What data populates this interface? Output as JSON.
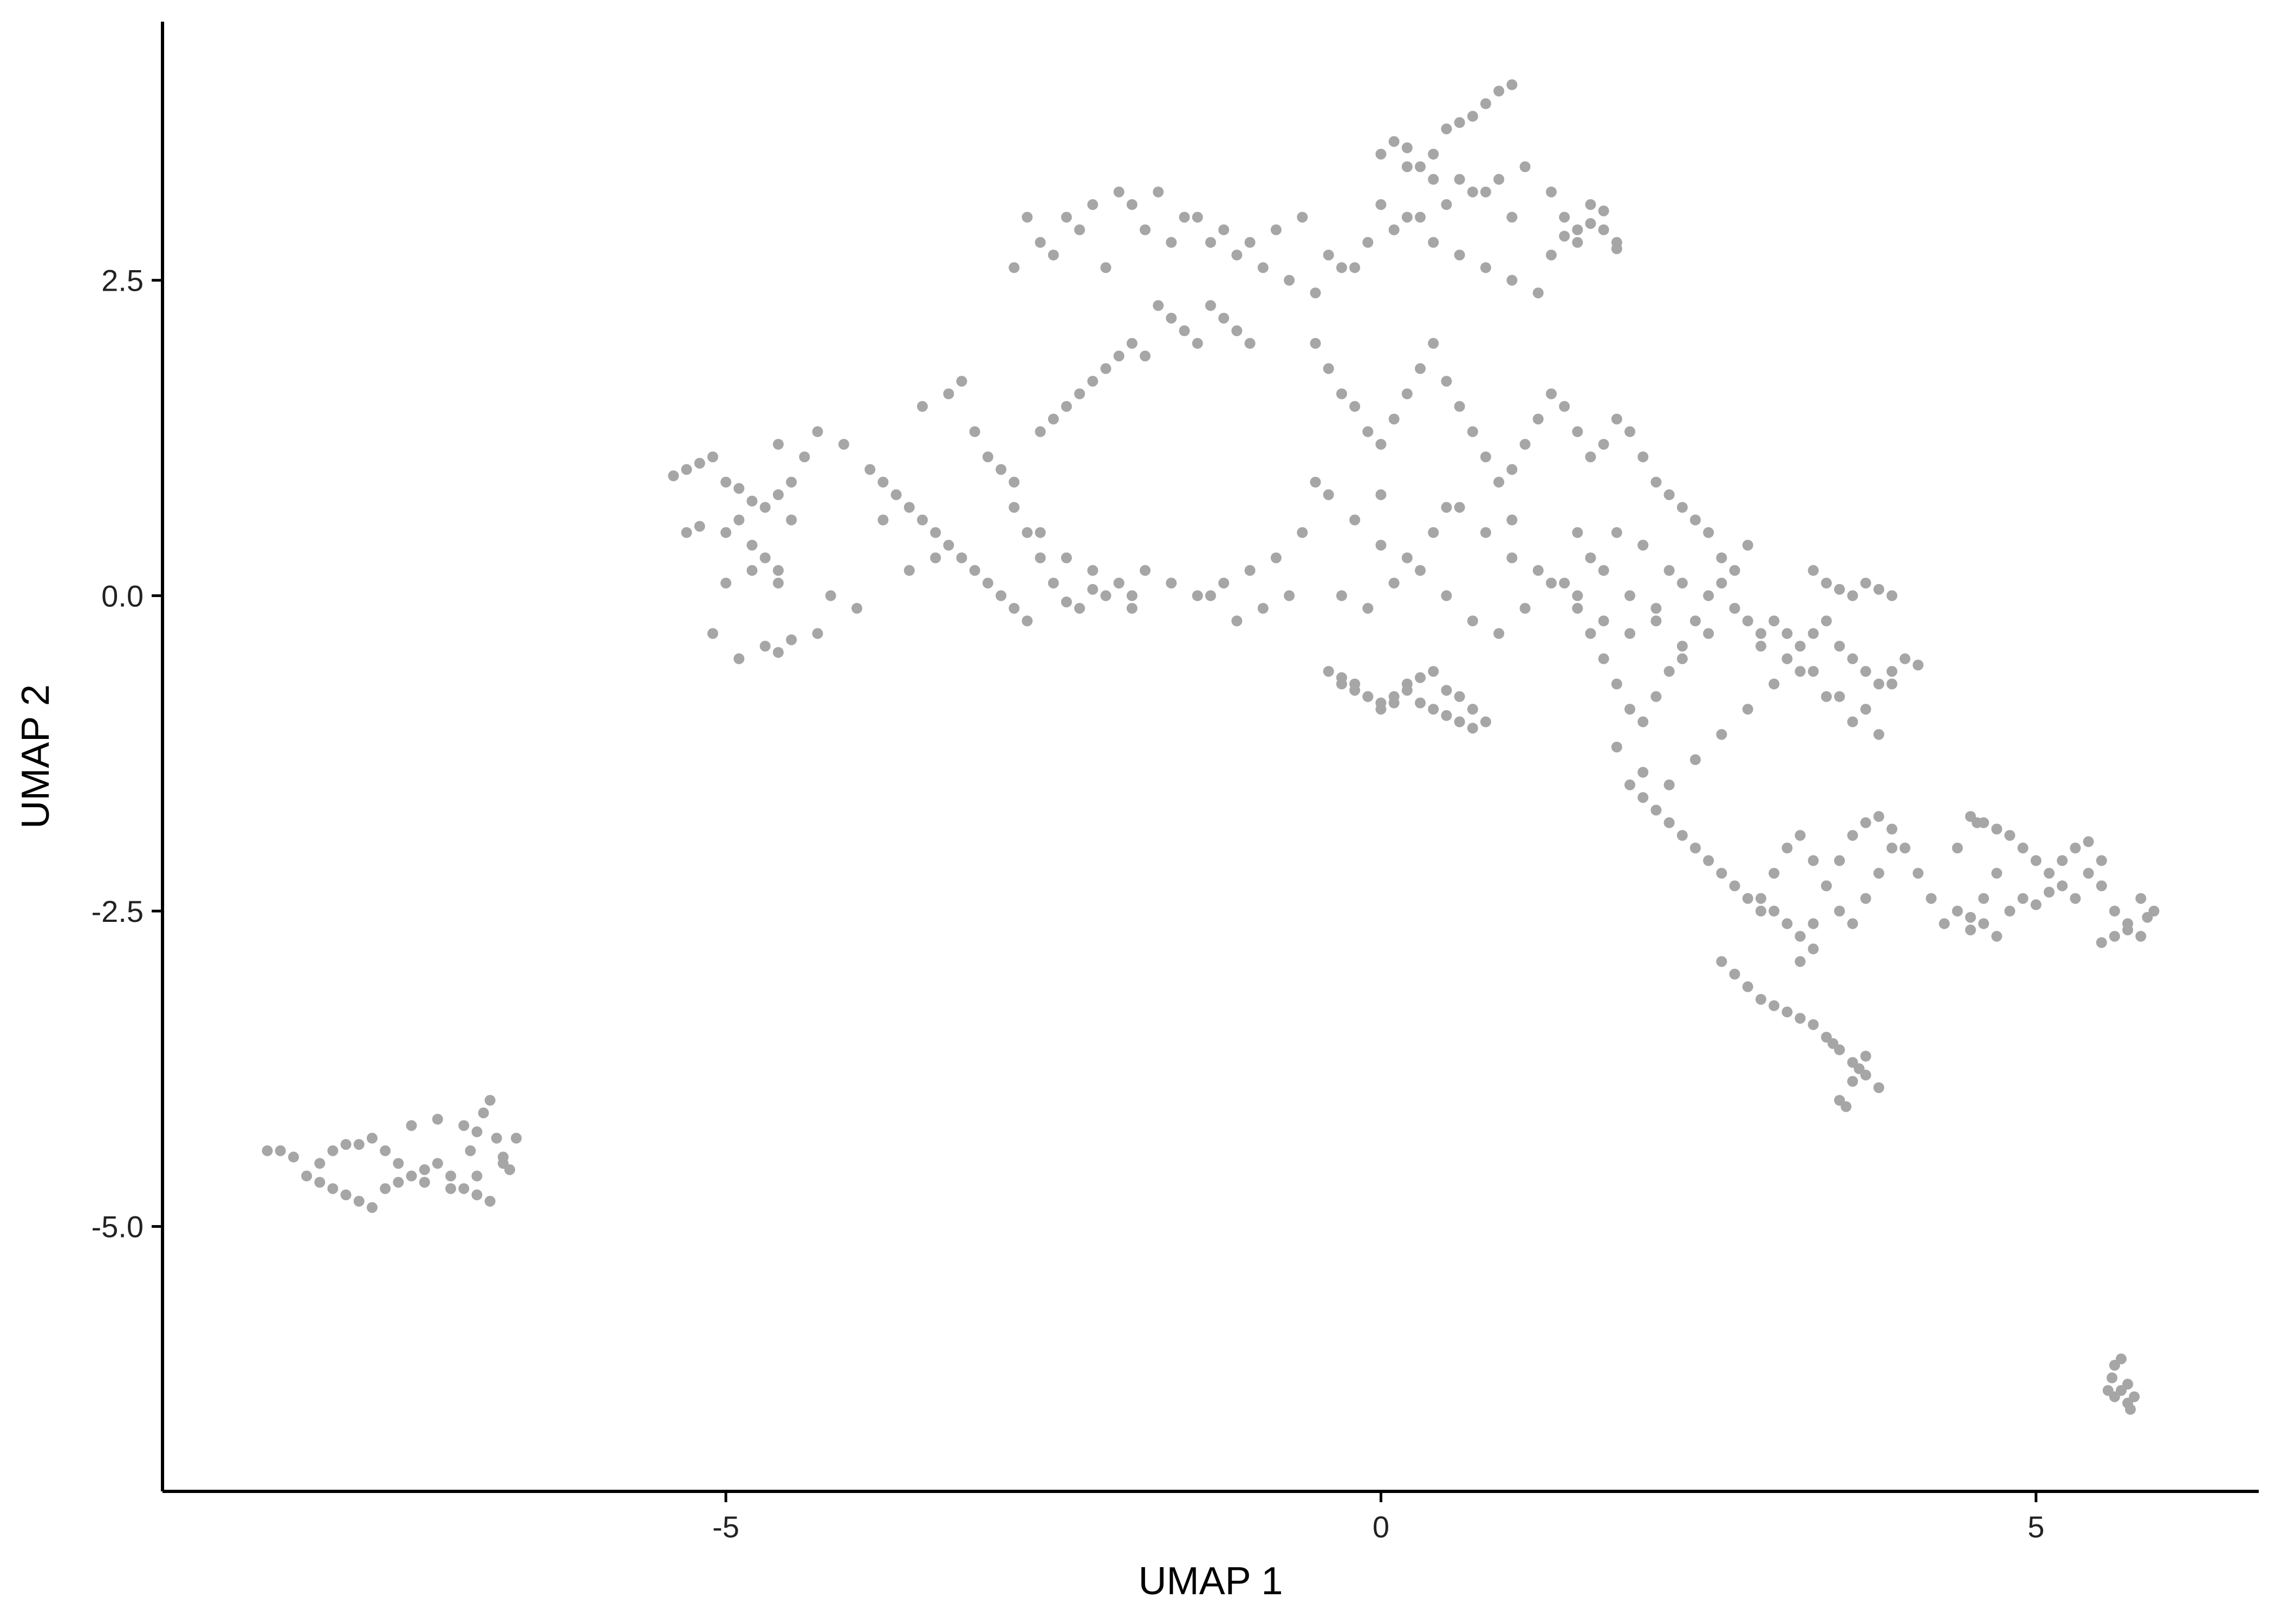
{
  "chart_data": {
    "type": "scatter",
    "xlabel": "UMAP 1",
    "ylabel": "UMAP 2",
    "xlim": [
      -9.3,
      6.7
    ],
    "ylim": [
      -7.1,
      4.55
    ],
    "xticks": [
      -5,
      0,
      5
    ],
    "xtick_labels": [
      "-5",
      "0",
      "5"
    ],
    "yticks": [
      -5.0,
      -2.5,
      0.0,
      2.5
    ],
    "ytick_labels": [
      "-5.0",
      "-2.5",
      "0.0",
      "2.5"
    ],
    "grid": false,
    "legend": "none",
    "point_color": "#a6a6a6",
    "axis_color": "#000000",
    "series": [
      {
        "x": [
          -5.4,
          -5.3,
          -5.2,
          -5.1,
          -5.0,
          -4.9,
          -4.8,
          -4.9,
          -5.0,
          -4.7,
          -4.6,
          -4.5,
          -4.6,
          -4.8,
          -4.7,
          -4.6,
          -4.5,
          -5.2,
          -5.3,
          -5.0,
          -4.4,
          -4.3,
          -4.1,
          -3.9,
          -3.8,
          -3.7,
          -3.6,
          -3.5,
          -3.4,
          -3.3,
          -3.2,
          -3.1,
          -3.0,
          -2.9,
          -2.8,
          -2.7,
          -3.5,
          -3.3,
          -3.2,
          -3.1,
          -3.0,
          -2.9,
          -2.8,
          -3.8,
          -3.6,
          -4.0,
          -4.2,
          -3.4,
          -2.6,
          -2.5,
          -2.4,
          -2.3,
          -2.2,
          -2.1,
          -2.0,
          -2.6,
          -2.4,
          -2.2,
          -2.0,
          -1.9,
          -2.8,
          -2.7,
          -2.6,
          -2.5,
          -2.4,
          -2.3,
          -2.2,
          -1.9,
          -2.1,
          -4.6,
          -4.9,
          -5.1,
          -4.7,
          -4.5,
          -4.3,
          -4.8,
          -4.6
        ],
        "y": [
          0.95,
          1.0,
          1.05,
          1.1,
          0.9,
          0.85,
          0.75,
          0.6,
          0.5,
          0.7,
          0.8,
          0.9,
          1.2,
          0.4,
          0.3,
          0.2,
          0.6,
          0.55,
          0.5,
          0.1,
          1.1,
          1.3,
          1.2,
          1.0,
          0.9,
          0.8,
          0.7,
          0.6,
          0.5,
          0.4,
          0.3,
          0.2,
          0.1,
          0.0,
          -0.1,
          -0.2,
          1.5,
          1.6,
          1.7,
          1.3,
          1.1,
          1.0,
          0.9,
          0.6,
          0.2,
          -0.1,
          0.0,
          0.3,
          1.3,
          1.4,
          1.5,
          1.6,
          1.7,
          1.8,
          1.9,
          0.5,
          0.3,
          0.2,
          0.1,
          0.0,
          0.7,
          0.5,
          0.3,
          0.1,
          -0.05,
          -0.1,
          0.05,
          -0.1,
          0.0,
          -0.45,
          -0.5,
          -0.3,
          -0.4,
          -0.35,
          -0.3,
          0.2,
          0.1
        ]
      },
      {
        "x": [
          -2.8,
          -2.6,
          -2.4,
          -2.2,
          -2.0,
          -1.8,
          -1.6,
          -1.4,
          -1.2,
          -1.0,
          -0.8,
          -0.6,
          -0.4,
          -0.2,
          0.0,
          0.2,
          0.4,
          0.6,
          0.8,
          1.0,
          -2.7,
          -2.5,
          -2.3,
          -2.1,
          -1.9,
          -1.7,
          -1.5,
          -1.3,
          -1.1,
          -0.9,
          -0.7,
          -0.5,
          -0.3,
          -0.1,
          0.1,
          0.3,
          0.5,
          0.7,
          0.9,
          1.1,
          1.3,
          1.5,
          1.7,
          -1.6,
          -1.5,
          -1.4,
          -1.3,
          -1.2,
          -1.1,
          -1.0,
          -1.7,
          -1.8,
          -1.9,
          0.0,
          0.1,
          0.2,
          0.3,
          0.4,
          0.5,
          0.6,
          0.7,
          0.8,
          0.9,
          1.0,
          0.2,
          0.4,
          0.6,
          0.8,
          1.0,
          1.2,
          1.4,
          1.6,
          1.8,
          1.5,
          1.6,
          1.7,
          1.8,
          1.4,
          1.3
        ],
        "y": [
          2.6,
          2.8,
          3.0,
          3.1,
          3.2,
          2.9,
          2.8,
          3.0,
          2.9,
          2.8,
          2.9,
          3.0,
          2.7,
          2.6,
          3.1,
          3.4,
          3.5,
          3.3,
          3.2,
          3.0,
          3.0,
          2.7,
          2.9,
          2.6,
          3.1,
          3.2,
          3.0,
          2.8,
          2.7,
          2.6,
          2.5,
          2.4,
          2.6,
          2.8,
          2.9,
          3.0,
          3.1,
          3.2,
          3.3,
          3.4,
          2.7,
          2.8,
          2.9,
          2.2,
          2.1,
          2.0,
          2.3,
          2.2,
          2.1,
          2.0,
          2.3,
          1.9,
          2.0,
          3.5,
          3.6,
          3.55,
          3.4,
          3.3,
          3.7,
          3.75,
          3.8,
          3.9,
          4.0,
          4.05,
          3.0,
          2.8,
          2.7,
          2.6,
          2.5,
          2.4,
          3.0,
          3.1,
          2.8,
          2.9,
          2.95,
          3.05,
          2.75,
          2.85,
          3.2
        ]
      },
      {
        "x": [
          -0.5,
          -0.4,
          -0.3,
          -0.2,
          -0.1,
          0.0,
          0.1,
          0.2,
          0.3,
          0.4,
          0.5,
          0.6,
          0.7,
          0.8,
          0.9,
          1.0,
          1.1,
          1.2,
          1.3,
          1.4,
          1.5,
          1.6,
          1.7,
          1.8,
          1.9,
          2.0,
          2.1,
          2.2,
          2.3,
          2.4,
          -0.4,
          -0.2,
          0.0,
          0.2,
          0.4,
          0.6,
          0.8,
          1.0,
          1.2,
          1.4,
          1.6,
          1.8,
          2.0,
          2.2,
          -0.3,
          -0.1,
          0.1,
          0.3,
          0.5,
          0.7,
          0.9,
          1.1,
          1.3,
          1.5,
          1.7,
          1.9,
          2.1,
          2.3,
          -0.6,
          -0.8,
          -1.0,
          -1.2,
          -1.4,
          -1.6,
          -1.8,
          -2.0,
          -0.7,
          -0.9,
          -1.1,
          -1.3,
          -0.5,
          0.0,
          0.5,
          1.0,
          1.5,
          2.0,
          2.5,
          2.6,
          2.7,
          2.8
        ],
        "y": [
          2.0,
          1.8,
          1.6,
          1.5,
          1.3,
          1.2,
          1.4,
          1.6,
          1.8,
          2.0,
          1.7,
          1.5,
          1.3,
          1.1,
          0.9,
          1.0,
          1.2,
          1.4,
          1.6,
          1.5,
          1.3,
          1.1,
          1.2,
          1.4,
          1.3,
          1.1,
          0.9,
          0.8,
          0.7,
          0.6,
          0.8,
          0.6,
          0.4,
          0.3,
          0.5,
          0.7,
          0.5,
          0.3,
          0.2,
          0.1,
          0.3,
          0.5,
          0.4,
          0.2,
          0.0,
          -0.1,
          0.1,
          0.2,
          0.0,
          -0.2,
          -0.3,
          -0.1,
          0.1,
          0.0,
          -0.2,
          -0.3,
          -0.1,
          0.1,
          0.5,
          0.3,
          0.2,
          0.1,
          0.0,
          0.1,
          0.2,
          0.1,
          0.0,
          -0.1,
          -0.2,
          0.0,
          0.9,
          0.8,
          0.7,
          0.6,
          0.5,
          0.4,
          0.5,
          0.3,
          0.2,
          0.4
        ]
      },
      {
        "x": [
          -0.4,
          -0.3,
          -0.2,
          -0.1,
          0.0,
          0.1,
          0.2,
          0.3,
          0.4,
          0.5,
          0.6,
          0.7,
          -0.3,
          -0.2,
          -0.1,
          0.0,
          0.1,
          0.2,
          0.3,
          0.4,
          0.5,
          0.6,
          0.7,
          0.8
        ],
        "y": [
          -0.6,
          -0.7,
          -0.75,
          -0.8,
          -0.85,
          -0.8,
          -0.75,
          -0.85,
          -0.9,
          -0.95,
          -1.0,
          -1.05,
          -0.65,
          -0.7,
          -0.8,
          -0.9,
          -0.85,
          -0.7,
          -0.65,
          -0.6,
          -0.75,
          -0.8,
          -0.9,
          -1.0
        ]
      },
      {
        "x": [
          1.5,
          1.6,
          1.7,
          1.8,
          1.9,
          2.0,
          2.1,
          2.2,
          2.3,
          2.4,
          2.5,
          2.6,
          2.7,
          2.8,
          2.9,
          3.0,
          3.1,
          3.2,
          3.3,
          3.4,
          3.5,
          3.6,
          3.7,
          3.8,
          3.9,
          4.0,
          4.1,
          1.7,
          1.9,
          2.1,
          2.3,
          2.5,
          2.7,
          2.9,
          3.1,
          3.3,
          3.5,
          3.7,
          3.9,
          1.8,
          2.0,
          2.2,
          2.4,
          2.6,
          2.8,
          3.0,
          3.2,
          3.4,
          3.6,
          3.8,
          3.3,
          3.4,
          3.5,
          3.6,
          3.7,
          3.8,
          3.9
        ],
        "y": [
          -0.1,
          -0.3,
          -0.5,
          -0.7,
          -0.9,
          -1.0,
          -0.8,
          -0.6,
          -0.4,
          -0.2,
          0.0,
          0.1,
          -0.1,
          -0.2,
          -0.3,
          -0.2,
          -0.3,
          -0.4,
          -0.3,
          -0.2,
          -0.4,
          -0.5,
          -0.6,
          -0.7,
          -0.6,
          -0.5,
          -0.55,
          0.2,
          0.0,
          -0.2,
          -0.5,
          -0.3,
          -0.1,
          -0.4,
          -0.5,
          -0.6,
          -0.8,
          -0.9,
          -0.7,
          -1.2,
          -1.4,
          -1.5,
          -1.3,
          -1.1,
          -0.9,
          -0.7,
          -0.6,
          -0.8,
          -1.0,
          -1.1,
          0.2,
          0.1,
          0.05,
          0.0,
          0.1,
          0.05,
          0.0
        ]
      },
      {
        "x": [
          1.9,
          2.0,
          2.1,
          2.2,
          2.3,
          2.4,
          2.5,
          2.6,
          2.7,
          2.8,
          2.9,
          3.0,
          3.1,
          3.2,
          3.3,
          3.4,
          3.5,
          3.6,
          3.7,
          3.8,
          3.9,
          2.6,
          2.7,
          2.8,
          2.9,
          3.0,
          3.1,
          3.2,
          3.3,
          3.4,
          3.5,
          3.6,
          3.7,
          3.8,
          3.5,
          3.55,
          3.6,
          3.65,
          3.7,
          3.45,
          3.3,
          3.2,
          3.1,
          3.0,
          2.9,
          3.2,
          3.3,
          3.4,
          3.5,
          3.6,
          3.7,
          3.8,
          3.9,
          4.0,
          4.1,
          4.2
        ],
        "y": [
          -1.5,
          -1.6,
          -1.7,
          -1.8,
          -1.9,
          -2.0,
          -2.1,
          -2.2,
          -2.3,
          -2.4,
          -2.5,
          -2.2,
          -2.0,
          -1.9,
          -2.1,
          -2.3,
          -2.5,
          -2.6,
          -2.4,
          -2.2,
          -2.0,
          -2.9,
          -3.0,
          -3.1,
          -3.2,
          -3.25,
          -3.3,
          -3.35,
          -3.4,
          -3.5,
          -3.6,
          -3.7,
          -3.8,
          -3.9,
          -4.0,
          -4.05,
          -3.85,
          -3.75,
          -3.65,
          -3.55,
          -2.8,
          -2.7,
          -2.6,
          -2.5,
          -2.4,
          -2.9,
          -2.6,
          -2.3,
          -2.1,
          -1.9,
          -1.8,
          -1.75,
          -1.85,
          -2.0,
          -2.2,
          -2.4
        ]
      },
      {
        "x": [
          4.3,
          4.4,
          4.5,
          4.6,
          4.7,
          4.8,
          4.9,
          5.0,
          5.1,
          5.2,
          5.3,
          5.4,
          5.5,
          5.6,
          5.7,
          5.8,
          5.85,
          5.9,
          5.8,
          5.7,
          5.6,
          5.5,
          4.6,
          4.7,
          4.8,
          4.9,
          5.0,
          5.1,
          5.2,
          5.3,
          5.4,
          5.5,
          4.5,
          4.6,
          4.7,
          4.5,
          4.55,
          4.4
        ],
        "y": [
          -2.6,
          -2.5,
          -2.55,
          -2.6,
          -2.7,
          -2.5,
          -2.4,
          -2.45,
          -2.35,
          -2.3,
          -2.4,
          -2.2,
          -2.1,
          -2.5,
          -2.6,
          -2.7,
          -2.55,
          -2.5,
          -2.4,
          -2.65,
          -2.7,
          -2.75,
          -1.8,
          -1.85,
          -1.9,
          -2.0,
          -2.1,
          -2.2,
          -2.1,
          -2.0,
          -1.95,
          -2.3,
          -2.65,
          -2.4,
          -2.2,
          -1.75,
          -1.8,
          -2.0
        ]
      },
      {
        "x": [
          -8.4,
          -8.3,
          -8.2,
          -8.1,
          -8.0,
          -7.9,
          -7.8,
          -7.7,
          -7.6,
          -7.5,
          -7.4,
          -7.3,
          -7.2,
          -7.1,
          -7.0,
          -6.9,
          -6.8,
          -6.7,
          -6.6,
          -8.1,
          -8.0,
          -7.9,
          -7.8,
          -7.7,
          -7.6,
          -7.5,
          -7.4,
          -7.2,
          -7.0,
          -6.9,
          -6.85,
          -6.8,
          -6.75,
          -6.95,
          -6.9,
          -7.3,
          -7.1,
          -6.7,
          -6.65,
          -8.5
        ],
        "y": [
          -4.4,
          -4.45,
          -4.6,
          -4.65,
          -4.7,
          -4.75,
          -4.8,
          -4.85,
          -4.7,
          -4.65,
          -4.6,
          -4.55,
          -4.5,
          -4.6,
          -4.7,
          -4.75,
          -4.8,
          -4.5,
          -4.3,
          -4.5,
          -4.4,
          -4.35,
          -4.35,
          -4.3,
          -4.4,
          -4.5,
          -4.2,
          -4.15,
          -4.2,
          -4.25,
          -4.1,
          -4.0,
          -4.3,
          -4.4,
          -4.6,
          -4.65,
          -4.7,
          -4.45,
          -4.55,
          -4.4
        ]
      },
      {
        "x": [
          5.55,
          5.6,
          5.65,
          5.7,
          5.75,
          5.6,
          5.65,
          5.7,
          5.58,
          5.72
        ],
        "y": [
          -6.3,
          -6.35,
          -6.3,
          -6.4,
          -6.35,
          -6.1,
          -6.05,
          -6.25,
          -6.2,
          -6.45
        ]
      }
    ]
  }
}
